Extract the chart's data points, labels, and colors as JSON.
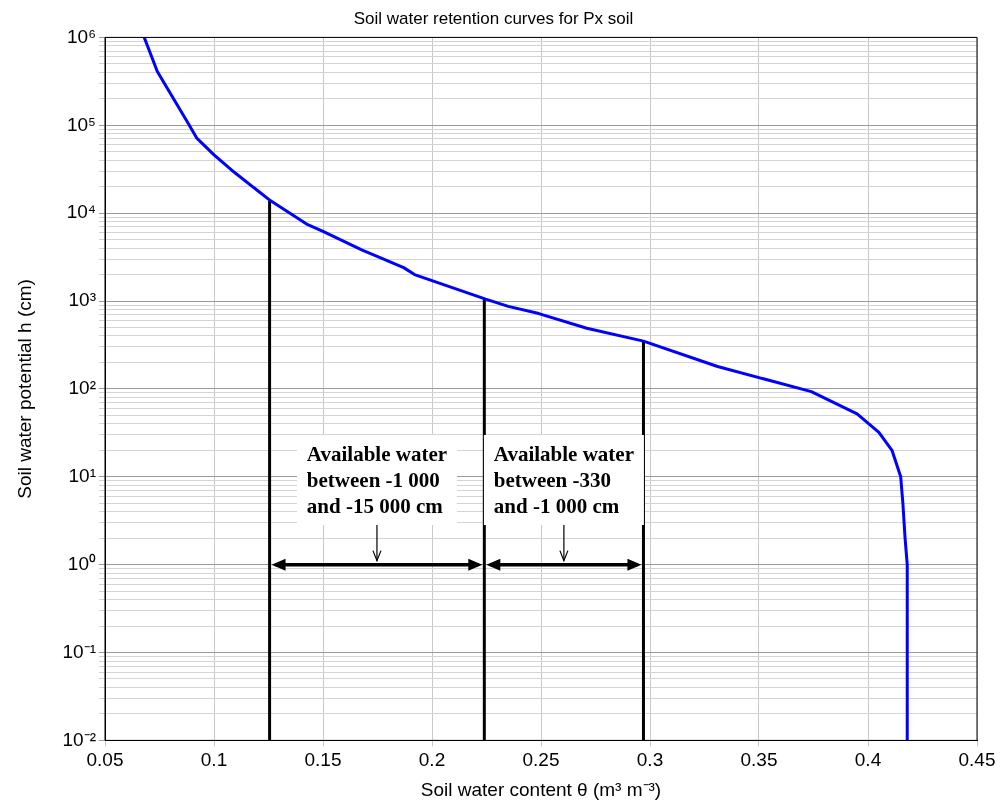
{
  "chart_data": {
    "type": "line",
    "title": "Soil water retention curves for Px soil",
    "xlabel": "Soil water content θ (m³ m⁻³)",
    "ylabel": "Soil water potential h (cm)",
    "series": [
      {
        "color": "#0000ff",
        "x": [
          0.068,
          0.074,
          0.088,
          0.092,
          0.1,
          0.108,
          0.126,
          0.143,
          0.15,
          0.168,
          0.187,
          0.192,
          0.2246,
          0.235,
          0.249,
          0.271,
          0.297,
          0.331,
          0.374,
          0.395,
          0.405,
          0.411,
          0.415,
          0.416,
          0.417,
          0.418,
          0.418
        ],
        "values": [
          1000000,
          410000,
          107000,
          72000,
          46000,
          31000,
          13800,
          7400,
          6200,
          3800,
          2400,
          2000,
          1050,
          870,
          720,
          490,
          350,
          180,
          93,
          52,
          32,
          20,
          10,
          5,
          2,
          1,
          0.01
        ]
      },
      {
        "color": "#000000",
        "x": [
          0.1255,
          0.1255
        ],
        "values": [
          0.01,
          13800
        ]
      },
      {
        "color": "#000000",
        "x": [
          0.224,
          0.224
        ],
        "values": [
          0.01,
          1050
        ]
      },
      {
        "color": "#000000",
        "x": [
          0.297,
          0.297
        ],
        "values": [
          0.01,
          350
        ]
      }
    ],
    "annotations": [
      "Available water\nbetween -1 000\nand -15 000 cm",
      "Available water\nbetween -330\nand -1 000 cm"
    ],
    "xlim": [
      0.05,
      0.45
    ],
    "xticks": [
      0.05,
      0.1,
      0.15,
      0.2,
      0.25,
      0.3,
      0.35,
      0.4,
      0.45
    ],
    "ylim": [
      0.01,
      1000000
    ],
    "yticks": [
      {
        "value": 0.01,
        "label": "10⁻²"
      },
      {
        "value": 0.02,
        "label": null
      },
      {
        "value": 0.03,
        "label": null
      },
      {
        "value": 0.04,
        "label": null
      },
      {
        "value": 0.05,
        "label": null
      },
      {
        "value": 0.06,
        "label": null
      },
      {
        "value": 0.07,
        "label": null
      },
      {
        "value": 0.08,
        "label": null
      },
      {
        "value": 0.09,
        "label": null
      },
      {
        "value": 0.1,
        "label": "10⁻¹"
      },
      {
        "value": 0.2,
        "label": null
      },
      {
        "value": 0.3,
        "label": null
      },
      {
        "value": 0.4,
        "label": null
      },
      {
        "value": 0.5,
        "label": null
      },
      {
        "value": 0.6,
        "label": null
      },
      {
        "value": 0.7,
        "label": null
      },
      {
        "value": 0.8,
        "label": null
      },
      {
        "value": 0.9,
        "label": null
      },
      {
        "value": 1,
        "label": "10⁰"
      },
      {
        "value": 2,
        "label": null
      },
      {
        "value": 3,
        "label": null
      },
      {
        "value": 4,
        "label": null
      },
      {
        "value": 5,
        "label": null
      },
      {
        "value": 6,
        "label": null
      },
      {
        "value": 7,
        "label": null
      },
      {
        "value": 8,
        "label": null
      },
      {
        "value": 9,
        "label": null
      },
      {
        "value": 10,
        "label": "10¹"
      },
      {
        "value": 20,
        "label": null
      },
      {
        "value": 30,
        "label": null
      },
      {
        "value": 40,
        "label": null
      },
      {
        "value": 50,
        "label": null
      },
      {
        "value": 60,
        "label": null
      },
      {
        "value": 70,
        "label": null
      },
      {
        "value": 80,
        "label": null
      },
      {
        "value": 90,
        "label": null
      },
      {
        "value": 100,
        "label": "10²"
      },
      {
        "value": 200,
        "label": null
      },
      {
        "value": 300,
        "label": null
      },
      {
        "value": 400,
        "label": null
      },
      {
        "value": 500,
        "label": null
      },
      {
        "value": 600,
        "label": null
      },
      {
        "value": 700,
        "label": null
      },
      {
        "value": 800,
        "label": null
      },
      {
        "value": 900,
        "label": null
      },
      {
        "value": 1000,
        "label": "10³"
      },
      {
        "value": 2000,
        "label": null
      },
      {
        "value": 3000,
        "label": null
      },
      {
        "value": 4000,
        "label": null
      },
      {
        "value": 5000,
        "label": null
      },
      {
        "value": 6000,
        "label": null
      },
      {
        "value": 7000,
        "label": null
      },
      {
        "value": 8000,
        "label": null
      },
      {
        "value": 9000,
        "label": null
      },
      {
        "value": 10000,
        "label": "10⁴"
      },
      {
        "value": 20000,
        "label": null
      },
      {
        "value": 30000,
        "label": null
      },
      {
        "value": 40000,
        "label": null
      },
      {
        "value": 50000,
        "label": null
      },
      {
        "value": 60000,
        "label": null
      },
      {
        "value": 70000,
        "label": null
      },
      {
        "value": 80000,
        "label": null
      },
      {
        "value": 90000,
        "label": null
      },
      {
        "value": 100000,
        "label": "10⁵"
      },
      {
        "value": 200000,
        "label": null
      },
      {
        "value": 300000,
        "label": null
      },
      {
        "value": 400000,
        "label": null
      },
      {
        "value": 500000,
        "label": null
      },
      {
        "value": 600000,
        "label": null
      },
      {
        "value": 700000,
        "label": null
      },
      {
        "value": 800000,
        "label": null
      },
      {
        "value": 900000,
        "label": null
      },
      {
        "value": 1000000,
        "label": "10⁶"
      }
    ],
    "log": "y",
    "grid": true,
    "legend": false,
    "marker": "none",
    "line_style": "solid"
  }
}
